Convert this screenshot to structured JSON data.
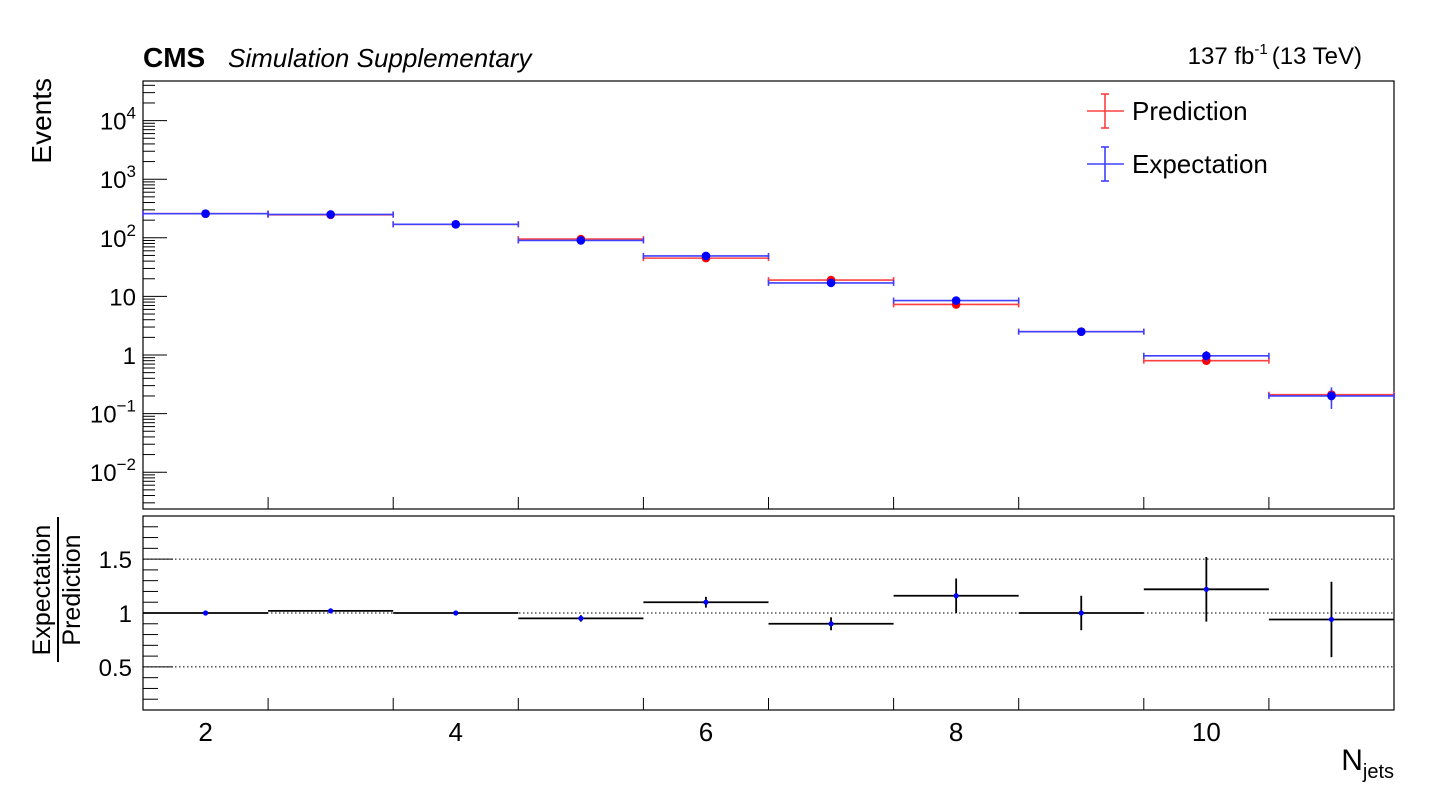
{
  "header": {
    "experiment": "CMS",
    "status": "Simulation Supplementary",
    "lumi_value": "137 fb",
    "lumi_exp": "-1",
    "lumi_energy": "(13 TeV)"
  },
  "chart_data": [
    {
      "type": "scatter",
      "panel": "main",
      "ylabel": "Events",
      "yscale": "log",
      "ylim": [
        0.003,
        50000
      ],
      "xlim": [
        1.5,
        11.5
      ],
      "y_tick_labels": [
        "10^-2",
        "10^-1",
        "1",
        "10",
        "10^2",
        "10^3",
        "10^4"
      ],
      "legend_position": "top-right",
      "series": [
        {
          "name": "Prediction",
          "color": "#ff4040",
          "x": [
            2,
            3,
            4,
            5,
            6,
            7,
            8,
            9,
            10,
            11
          ],
          "values": [
            258,
            247,
            170,
            95,
            45,
            19,
            7.3,
            2.5,
            0.8,
            0.21
          ],
          "yerr": [
            4,
            4,
            3,
            2,
            2,
            1,
            0.4,
            0.2,
            0.08,
            0.05
          ]
        },
        {
          "name": "Expectation",
          "color": "#4040ff",
          "x": [
            2,
            3,
            4,
            5,
            6,
            7,
            8,
            9,
            10,
            11
          ],
          "values": [
            258,
            250,
            170,
            90,
            49,
            17,
            8.5,
            2.5,
            0.97,
            0.2
          ],
          "yerr": [
            5,
            5,
            4,
            3,
            3,
            1.5,
            1,
            0.3,
            0.2,
            0.08
          ]
        }
      ]
    },
    {
      "type": "scatter",
      "panel": "ratio",
      "xlabel_main": "N",
      "xlabel_sub": "jets",
      "ylabel_top": "Expectation",
      "ylabel_bottom": "Prediction",
      "ylim": [
        0.1,
        1.9
      ],
      "xlim": [
        1.5,
        11.5
      ],
      "y_tick_labels": [
        "0.5",
        "1",
        "1.5"
      ],
      "x_tick_labels": [
        "2",
        "4",
        "6",
        "8",
        "10"
      ],
      "grid_y": [
        0.5,
        1,
        1.5
      ],
      "series": [
        {
          "name": "",
          "color": "#000000",
          "marker_color": "#0000ff",
          "x": [
            2,
            3,
            4,
            5,
            6,
            7,
            8,
            9,
            10,
            11
          ],
          "values": [
            1.0,
            1.02,
            1.0,
            0.95,
            1.1,
            0.9,
            1.16,
            1.0,
            1.22,
            0.94
          ],
          "yerr": [
            0.02,
            0.02,
            0.02,
            0.03,
            0.05,
            0.06,
            0.16,
            0.16,
            0.3,
            0.35
          ]
        }
      ]
    }
  ]
}
